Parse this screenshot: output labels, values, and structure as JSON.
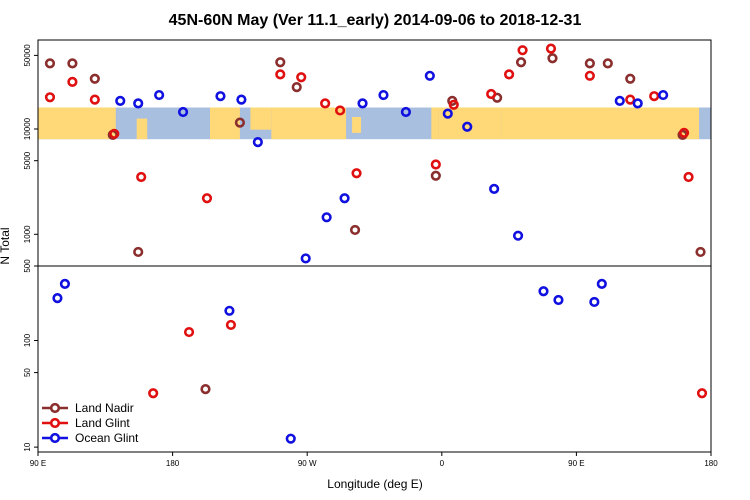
{
  "chart_data": {
    "type": "scatter",
    "title": "45N-60N May (Ver 11.1_early)   2014-09-06 to 2018-12-31",
    "xlabel": "Longitude (deg E)",
    "ylabel": "N Total",
    "x_ticks": [
      {
        "value": 90,
        "label": "90 E"
      },
      {
        "value": 180,
        "label": "180"
      },
      {
        "value": 270,
        "label": "90 W"
      },
      {
        "value": 360,
        "label": "0"
      },
      {
        "value": 450,
        "label": "90 E"
      },
      {
        "value": 540,
        "label": "180"
      }
    ],
    "xlim": [
      90,
      540
    ],
    "y_scale": "log",
    "panels": [
      {
        "name": "upper",
        "ylim": [
          500,
          70000
        ],
        "ticks": [
          {
            "value": 50000,
            "label": "50000"
          },
          {
            "value": 10000,
            "label": "10000"
          },
          {
            "value": 5000,
            "label": "5000"
          },
          {
            "value": 1000,
            "label": "1000"
          },
          {
            "value": 500,
            "label": "500"
          }
        ]
      },
      {
        "name": "lower",
        "ylim": [
          9,
          500
        ],
        "ticks": [
          {
            "value": 100,
            "label": "100"
          },
          {
            "value": 50,
            "label": "50"
          },
          {
            "value": 10,
            "label": "10"
          }
        ]
      }
    ],
    "map_band": {
      "ylim": [
        8000,
        16000
      ],
      "land_color": "#FFD878",
      "ocean_color": "#A9BFE0"
    },
    "series": [
      {
        "name": "Land Nadir",
        "color": "#8B2E2E",
        "points": [
          [
            98,
            42000
          ],
          [
            113,
            42000
          ],
          [
            128,
            30000
          ],
          [
            140,
            8800
          ],
          [
            157,
            680
          ],
          [
            202,
            35
          ],
          [
            225,
            11500
          ],
          [
            252,
            43000
          ],
          [
            263,
            25000
          ],
          [
            302,
            1100
          ],
          [
            356,
            3600
          ],
          [
            367,
            18500
          ],
          [
            397,
            19800
          ],
          [
            413,
            43000
          ],
          [
            434,
            47000
          ],
          [
            459,
            42000
          ],
          [
            471,
            42000
          ],
          [
            486,
            30000
          ],
          [
            521,
            8800
          ],
          [
            533,
            680
          ]
        ]
      },
      {
        "name": "Land Glint",
        "color": "#E01010",
        "points": [
          [
            98,
            20000
          ],
          [
            113,
            28000
          ],
          [
            128,
            19000
          ],
          [
            141,
            9000
          ],
          [
            159,
            3500
          ],
          [
            167,
            32
          ],
          [
            191,
            120
          ],
          [
            203,
            2200
          ],
          [
            219,
            140
          ],
          [
            252,
            33000
          ],
          [
            266,
            31000
          ],
          [
            282,
            17500
          ],
          [
            292,
            15000
          ],
          [
            303,
            3800
          ],
          [
            356,
            4600
          ],
          [
            368,
            17000
          ],
          [
            393,
            21500
          ],
          [
            405,
            33000
          ],
          [
            414,
            56000
          ],
          [
            433,
            58000
          ],
          [
            459,
            32000
          ],
          [
            486,
            19000
          ],
          [
            502,
            20500
          ],
          [
            522,
            9200
          ],
          [
            525,
            3500
          ],
          [
            534,
            32
          ]
        ]
      },
      {
        "name": "Ocean Glint",
        "color": "#1010E0",
        "points": [
          [
            103,
            250
          ],
          [
            108,
            340
          ],
          [
            145,
            18500
          ],
          [
            157,
            17500
          ],
          [
            171,
            21000
          ],
          [
            187,
            14500
          ],
          [
            212,
            20500
          ],
          [
            218,
            190
          ],
          [
            226,
            19000
          ],
          [
            237,
            7500
          ],
          [
            259,
            12
          ],
          [
            269,
            590
          ],
          [
            283,
            1450
          ],
          [
            295,
            2200
          ],
          [
            307,
            17500
          ],
          [
            321,
            21000
          ],
          [
            336,
            14500
          ],
          [
            352,
            32000
          ],
          [
            364,
            14000
          ],
          [
            377,
            10500
          ],
          [
            395,
            2700
          ],
          [
            411,
            970
          ],
          [
            428,
            290
          ],
          [
            438,
            240
          ],
          [
            462,
            230
          ],
          [
            467,
            340
          ],
          [
            479,
            18500
          ],
          [
            491,
            17500
          ],
          [
            508,
            21000
          ]
        ]
      }
    ],
    "legend": {
      "position": "bottom-left",
      "entries": [
        "Land Nadir",
        "Land Glint",
        "Ocean Glint"
      ]
    }
  }
}
